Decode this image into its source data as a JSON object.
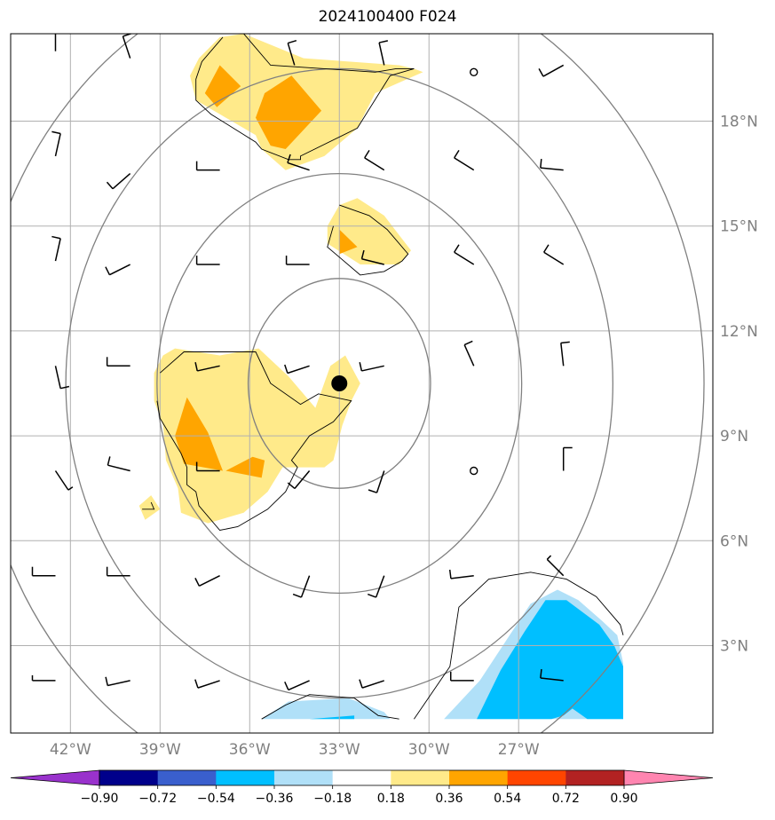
{
  "chart_data": {
    "type": "heatmap",
    "title": "2024100400 F024",
    "x_range": [
      -44.0,
      -20.5
    ],
    "y_range": [
      0.5,
      20.5
    ],
    "lon_ticks": [
      -42,
      -39,
      -36,
      -33,
      -30,
      -27
    ],
    "lon_tick_labels": [
      "42°W",
      "39°W",
      "36°W",
      "33°W",
      "30°W",
      "27°W"
    ],
    "lat_ticks": [
      3,
      6,
      9,
      12,
      15,
      18
    ],
    "lat_tick_labels": [
      "3°N",
      "6°N",
      "9°N",
      "12°N",
      "15°N",
      "18°N"
    ],
    "grid": true,
    "center_marker": {
      "lon": -33.0,
      "lat": 10.5
    },
    "range_rings_deg": [
      3,
      6,
      9,
      12
    ],
    "colorbar": {
      "levels": [
        -0.9,
        -0.72,
        -0.54,
        -0.36,
        -0.18,
        0.18,
        0.36,
        0.54,
        0.72,
        0.9
      ],
      "tick_labels": [
        "−0.90",
        "−0.72",
        "−0.54",
        "−0.36",
        "−0.18",
        "0.18",
        "0.36",
        "0.54",
        "0.72",
        "0.90"
      ],
      "colors": [
        "#9932cc",
        "#00008b",
        "#3a5fcd",
        "#00bfff",
        "#b0e0f8",
        "#ffffff",
        "#ffea8a",
        "#ffa500",
        "#ff4500",
        "#b22222",
        "#ff85b0"
      ],
      "extend": "both"
    },
    "filled_regions": [
      {
        "level": 0.18,
        "points": [
          [
            -36.2,
            20.5
          ],
          [
            -34.2,
            19.8
          ],
          [
            -31.0,
            19.6
          ],
          [
            -30.5,
            19.5
          ],
          [
            -30.2,
            19.4
          ],
          [
            -31.8,
            18.8
          ],
          [
            -32.4,
            17.8
          ],
          [
            -33.5,
            17.0
          ],
          [
            -34.8,
            16.6
          ],
          [
            -35.6,
            17.2
          ],
          [
            -35.8,
            17.6
          ],
          [
            -37.2,
            18.3
          ],
          [
            -37.8,
            18.6
          ],
          [
            -38.0,
            19.3
          ],
          [
            -37.7,
            19.8
          ],
          [
            -37.0,
            20.4
          ]
        ]
      },
      {
        "level": 0.36,
        "points": [
          [
            -37.0,
            19.6
          ],
          [
            -36.3,
            19.0
          ],
          [
            -37.1,
            18.4
          ],
          [
            -37.5,
            18.8
          ]
        ]
      },
      {
        "level": 0.36,
        "points": [
          [
            -35.5,
            18.8
          ],
          [
            -34.6,
            19.3
          ],
          [
            -33.6,
            18.3
          ],
          [
            -34.8,
            17.2
          ],
          [
            -35.3,
            17.3
          ],
          [
            -35.8,
            18.1
          ]
        ]
      },
      {
        "level": 0.18,
        "points": [
          [
            -32.4,
            15.8
          ],
          [
            -31.5,
            15.3
          ],
          [
            -30.6,
            14.3
          ],
          [
            -31.0,
            13.9
          ],
          [
            -32.3,
            13.9
          ],
          [
            -33.4,
            14.5
          ],
          [
            -33.4,
            15.0
          ],
          [
            -33.0,
            15.6
          ]
        ]
      },
      {
        "level": 0.36,
        "points": [
          [
            -33.0,
            14.9
          ],
          [
            -32.4,
            14.4
          ],
          [
            -33.0,
            14.2
          ]
        ]
      },
      {
        "level": 0.18,
        "points": [
          [
            -38.9,
            11.3
          ],
          [
            -38.5,
            11.5
          ],
          [
            -37.0,
            11.3
          ],
          [
            -35.7,
            11.5
          ],
          [
            -34.7,
            10.7
          ],
          [
            -33.8,
            9.8
          ],
          [
            -33.3,
            11.0
          ],
          [
            -32.8,
            11.3
          ],
          [
            -32.3,
            10.5
          ],
          [
            -32.6,
            10.0
          ],
          [
            -32.9,
            9.3
          ],
          [
            -33.2,
            8.3
          ],
          [
            -33.5,
            8.1
          ],
          [
            -34.9,
            8.1
          ],
          [
            -35.4,
            7.4
          ],
          [
            -36.2,
            6.8
          ],
          [
            -37.4,
            6.5
          ],
          [
            -38.3,
            6.8
          ],
          [
            -38.4,
            7.5
          ],
          [
            -38.8,
            8.3
          ],
          [
            -38.9,
            9.3
          ],
          [
            -39.2,
            10.0
          ],
          [
            -39.2,
            10.8
          ]
        ]
      },
      {
        "level": 0.36,
        "points": [
          [
            -38.1,
            10.1
          ],
          [
            -37.4,
            9.1
          ],
          [
            -36.9,
            8.0
          ],
          [
            -38.2,
            8.2
          ],
          [
            -38.5,
            9.0
          ]
        ]
      },
      {
        "level": 0.36,
        "points": [
          [
            -36.8,
            8.0
          ],
          [
            -35.9,
            8.4
          ],
          [
            -35.5,
            8.3
          ],
          [
            -35.6,
            7.8
          ]
        ]
      },
      {
        "level": 0.18,
        "points": [
          [
            -39.7,
            7.0
          ],
          [
            -39.3,
            7.3
          ],
          [
            -39.0,
            6.9
          ],
          [
            -39.5,
            6.6
          ]
        ]
      },
      {
        "level": -0.18,
        "points": [
          [
            -35.6,
            0.9
          ],
          [
            -34.7,
            1.4
          ],
          [
            -32.7,
            1.5
          ],
          [
            -31.5,
            1.1
          ],
          [
            -31.3,
            0.9
          ]
        ]
      },
      {
        "level": -0.36,
        "points": [
          [
            -34.0,
            0.9
          ],
          [
            -32.5,
            1.0
          ],
          [
            -32.5,
            0.9
          ]
        ]
      },
      {
        "level": -0.18,
        "points": [
          [
            -29.5,
            0.9
          ],
          [
            -28.3,
            2.0
          ],
          [
            -27.3,
            3.3
          ],
          [
            -26.6,
            4.2
          ],
          [
            -25.7,
            4.6
          ],
          [
            -25.0,
            4.3
          ],
          [
            -24.2,
            3.7
          ],
          [
            -23.7,
            3.3
          ],
          [
            -23.5,
            2.5
          ],
          [
            -23.5,
            0.9
          ]
        ]
      },
      {
        "level": -0.36,
        "points": [
          [
            -28.4,
            0.9
          ],
          [
            -27.6,
            2.3
          ],
          [
            -26.8,
            3.4
          ],
          [
            -26.1,
            4.3
          ],
          [
            -25.4,
            4.3
          ],
          [
            -24.3,
            3.6
          ],
          [
            -23.8,
            3.0
          ],
          [
            -23.5,
            2.4
          ],
          [
            -23.5,
            0.9
          ],
          [
            -24.7,
            0.9
          ],
          [
            -25.2,
            1.2
          ],
          [
            -25.5,
            1.0
          ],
          [
            -25.9,
            0.9
          ]
        ]
      }
    ],
    "contour_lines": [
      [
        [
          -36.2,
          20.5
        ],
        [
          -35.9,
          20.2
        ],
        [
          -35.3,
          19.6
        ],
        [
          -33.5,
          19.5
        ],
        [
          -31.8,
          19.4
        ],
        [
          -31.1,
          19.5
        ],
        [
          -30.5,
          19.5
        ],
        [
          -31.3,
          19.3
        ],
        [
          -32.4,
          17.8
        ],
        [
          -34.3,
          17.0
        ],
        [
          -34.3,
          16.9
        ],
        [
          -34.7,
          16.9
        ],
        [
          -35.6,
          17.2
        ],
        [
          -35.8,
          17.4
        ],
        [
          -37.3,
          18.2
        ],
        [
          -37.8,
          18.6
        ],
        [
          -37.8,
          19.2
        ],
        [
          -37.6,
          19.7
        ],
        [
          -36.9,
          20.4
        ]
      ],
      [
        [
          -33.0,
          15.6
        ],
        [
          -32.0,
          15.3
        ],
        [
          -31.4,
          14.9
        ],
        [
          -30.7,
          14.2
        ],
        [
          -30.9,
          14.0
        ],
        [
          -31.5,
          13.7
        ],
        [
          -32.3,
          13.6
        ],
        [
          -33.4,
          14.4
        ],
        [
          -33.2,
          15.0
        ]
      ],
      [
        [
          -39.1,
          10.0
        ],
        [
          -39.0,
          9.5
        ],
        [
          -38.3,
          8.5
        ],
        [
          -38.1,
          8.1
        ],
        [
          -38.1,
          7.6
        ],
        [
          -37.8,
          7.4
        ],
        [
          -37.7,
          7.0
        ],
        [
          -37.0,
          6.3
        ],
        [
          -36.4,
          6.4
        ],
        [
          -35.4,
          6.9
        ],
        [
          -34.8,
          7.4
        ],
        [
          -34.4,
          8.1
        ],
        [
          -34.6,
          8.3
        ],
        [
          -34.0,
          9.0
        ],
        [
          -33.2,
          9.4
        ],
        [
          -32.6,
          10.0
        ],
        [
          -33.7,
          10.2
        ],
        [
          -34.3,
          9.9
        ],
        [
          -35.3,
          10.5
        ],
        [
          -35.8,
          11.4
        ],
        [
          -38.2,
          11.4
        ],
        [
          -39.0,
          10.8
        ]
      ],
      [
        [
          -39.6,
          6.9
        ],
        [
          -39.2,
          6.9
        ],
        [
          -39.3,
          7.1
        ]
      ],
      [
        [
          -35.6,
          0.9
        ],
        [
          -34.8,
          1.3
        ],
        [
          -34.0,
          1.6
        ],
        [
          -32.5,
          1.5
        ],
        [
          -31.7,
          1.0
        ],
        [
          -31.0,
          0.9
        ]
      ],
      [
        [
          -30.5,
          0.9
        ],
        [
          -29.3,
          2.4
        ],
        [
          -29.0,
          4.1
        ],
        [
          -28.0,
          4.9
        ],
        [
          -26.6,
          5.1
        ],
        [
          -25.4,
          4.9
        ],
        [
          -24.4,
          4.4
        ],
        [
          -23.6,
          3.6
        ],
        [
          -23.5,
          3.3
        ]
      ]
    ],
    "wind_barbs": [
      {
        "lon": -42.5,
        "lat": 20.0,
        "u": 0,
        "v": -10
      },
      {
        "lon": -40.0,
        "lat": 19.8,
        "u": 3,
        "v": -9
      },
      {
        "lon": -34.5,
        "lat": 19.6,
        "u": 3,
        "v": -10
      },
      {
        "lon": -31.5,
        "lat": 19.6,
        "u": 2,
        "v": -9
      },
      {
        "lon": -28.5,
        "lat": 19.4,
        "u": 0,
        "v": 0
      },
      {
        "lon": -25.5,
        "lat": 19.6,
        "u": 9,
        "v": 5
      },
      {
        "lon": -42.5,
        "lat": 17.0,
        "u": -2,
        "v": -9
      },
      {
        "lon": -40.0,
        "lat": 16.5,
        "u": 8,
        "v": 7
      },
      {
        "lon": -37.0,
        "lat": 16.6,
        "u": 10,
        "v": 0
      },
      {
        "lon": -34.0,
        "lat": 16.6,
        "u": 9,
        "v": -3
      },
      {
        "lon": -31.5,
        "lat": 16.6,
        "u": 8,
        "v": -5
      },
      {
        "lon": -28.5,
        "lat": 16.6,
        "u": 8,
        "v": -5
      },
      {
        "lon": -25.5,
        "lat": 16.6,
        "u": 10,
        "v": -1
      },
      {
        "lon": -42.5,
        "lat": 14.0,
        "u": -2,
        "v": -9
      },
      {
        "lon": -40.0,
        "lat": 13.9,
        "u": 8,
        "v": 4
      },
      {
        "lon": -37.0,
        "lat": 13.9,
        "u": 10,
        "v": 0
      },
      {
        "lon": -34.0,
        "lat": 13.9,
        "u": 10,
        "v": 0
      },
      {
        "lon": -31.5,
        "lat": 13.9,
        "u": 8,
        "v": -2
      },
      {
        "lon": -28.5,
        "lat": 13.9,
        "u": 8,
        "v": -5
      },
      {
        "lon": -25.5,
        "lat": 13.9,
        "u": 8,
        "v": -5
      },
      {
        "lon": -42.5,
        "lat": 11.0,
        "u": -2,
        "v": 9
      },
      {
        "lon": -40.0,
        "lat": 11.0,
        "u": 10,
        "v": 0
      },
      {
        "lon": -37.0,
        "lat": 11.0,
        "u": 9,
        "v": 2
      },
      {
        "lon": -34.0,
        "lat": 11.0,
        "u": 9,
        "v": 3
      },
      {
        "lon": -31.5,
        "lat": 11.0,
        "u": 9,
        "v": 2
      },
      {
        "lon": -28.5,
        "lat": 11.0,
        "u": 4,
        "v": -9
      },
      {
        "lon": -25.5,
        "lat": 11.0,
        "u": 1,
        "v": -9
      },
      {
        "lon": -42.5,
        "lat": 8.0,
        "u": -4,
        "v": 6
      },
      {
        "lon": -40.0,
        "lat": 8.0,
        "u": 8,
        "v": -2
      },
      {
        "lon": -37.0,
        "lat": 8.0,
        "u": 9,
        "v": 0
      },
      {
        "lon": -34.0,
        "lat": 8.0,
        "u": 5,
        "v": 6
      },
      {
        "lon": -31.5,
        "lat": 8.0,
        "u": 3,
        "v": 9
      },
      {
        "lon": -28.5,
        "lat": 8.0,
        "u": 0,
        "v": 0
      },
      {
        "lon": -25.5,
        "lat": 8.0,
        "u": 0,
        "v": -9
      },
      {
        "lon": -42.5,
        "lat": 5.0,
        "u": 8,
        "v": 0
      },
      {
        "lon": -40.0,
        "lat": 5.0,
        "u": 8,
        "v": 0
      },
      {
        "lon": -37.0,
        "lat": 5.0,
        "u": 8,
        "v": 4
      },
      {
        "lon": -34.0,
        "lat": 5.0,
        "u": 3,
        "v": 8
      },
      {
        "lon": -31.5,
        "lat": 5.0,
        "u": 3,
        "v": 8
      },
      {
        "lon": -28.5,
        "lat": 5.0,
        "u": 8,
        "v": 1
      },
      {
        "lon": -25.5,
        "lat": 5.0,
        "u": 5,
        "v": -5
      },
      {
        "lon": -42.5,
        "lat": 2.0,
        "u": 7,
        "v": 0
      },
      {
        "lon": -40.0,
        "lat": 2.0,
        "u": 9,
        "v": 2
      },
      {
        "lon": -37.0,
        "lat": 2.0,
        "u": 9,
        "v": 3
      },
      {
        "lon": -34.0,
        "lat": 2.0,
        "u": 9,
        "v": 4
      },
      {
        "lon": -31.5,
        "lat": 2.0,
        "u": 9,
        "v": 3
      },
      {
        "lon": -28.5,
        "lat": 2.0,
        "u": 9,
        "v": 0
      },
      {
        "lon": -25.5,
        "lat": 2.0,
        "u": 9,
        "v": -1
      }
    ]
  }
}
